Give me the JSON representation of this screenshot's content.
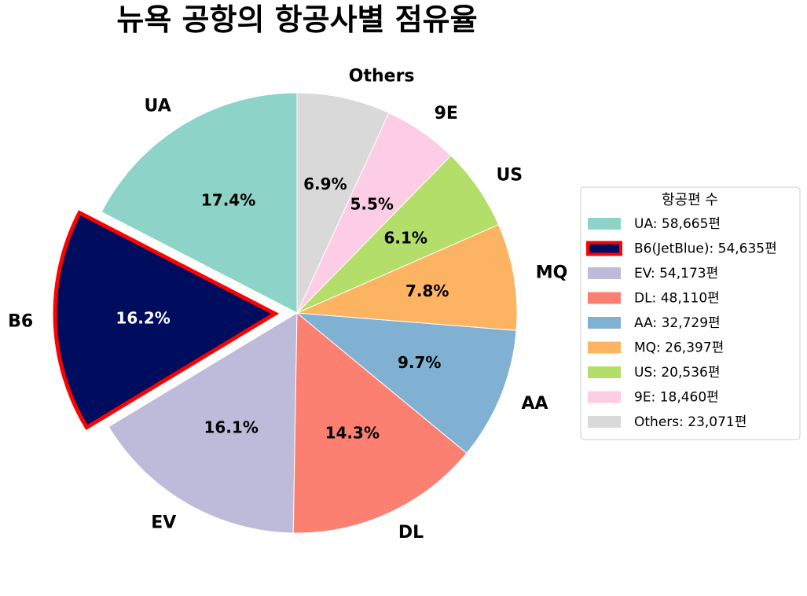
{
  "chart_data": {
    "type": "pie",
    "title": "뉴욕 공항의 항공사별 점유율",
    "start_angle_deg": 90,
    "direction": "counterclockwise",
    "slices": [
      {
        "label": "UA",
        "value": 58665,
        "pct_text": "17.4%",
        "legend": "UA: 58,665편",
        "color": "#8dd3c7",
        "pct_color": "#000000",
        "explode": 0,
        "edge": "#ffffff",
        "edge_width": 1
      },
      {
        "label": "B6",
        "value": 54635,
        "pct_text": "16.2%",
        "legend": "B6(JetBlue): 54,635편",
        "color": "#000c5e",
        "pct_color": "#ffffff",
        "explode": 0.1,
        "edge": "#ff0000",
        "edge_width": 5
      },
      {
        "label": "EV",
        "value": 54173,
        "pct_text": "16.1%",
        "legend": "EV: 54,173편",
        "color": "#bebada",
        "pct_color": "#000000",
        "explode": 0,
        "edge": "#ffffff",
        "edge_width": 1
      },
      {
        "label": "DL",
        "value": 48110,
        "pct_text": "14.3%",
        "legend": "DL: 48,110편",
        "color": "#fb8072",
        "pct_color": "#000000",
        "explode": 0,
        "edge": "#ffffff",
        "edge_width": 1
      },
      {
        "label": "AA",
        "value": 32729,
        "pct_text": "9.7%",
        "legend": "AA: 32,729편",
        "color": "#80b1d3",
        "pct_color": "#000000",
        "explode": 0,
        "edge": "#ffffff",
        "edge_width": 1
      },
      {
        "label": "MQ",
        "value": 26397,
        "pct_text": "7.8%",
        "legend": "MQ: 26,397편",
        "color": "#fdb462",
        "pct_color": "#000000",
        "explode": 0,
        "edge": "#ffffff",
        "edge_width": 1
      },
      {
        "label": "US",
        "value": 20536,
        "pct_text": "6.1%",
        "legend": "US: 20,536편",
        "color": "#b3de69",
        "pct_color": "#000000",
        "explode": 0,
        "edge": "#ffffff",
        "edge_width": 1
      },
      {
        "label": "9E",
        "value": 18460,
        "pct_text": "5.5%",
        "legend": "9E: 18,460편",
        "color": "#fccde5",
        "pct_color": "#000000",
        "explode": 0,
        "edge": "#ffffff",
        "edge_width": 1
      },
      {
        "label": "Others",
        "value": 23071,
        "pct_text": "6.9%",
        "legend": "Others: 23,071편",
        "color": "#d9d9d9",
        "pct_color": "#000000",
        "explode": 0,
        "edge": "#ffffff",
        "edge_width": 1
      }
    ],
    "legend": {
      "title": "항공편 수",
      "placement": "right"
    }
  }
}
